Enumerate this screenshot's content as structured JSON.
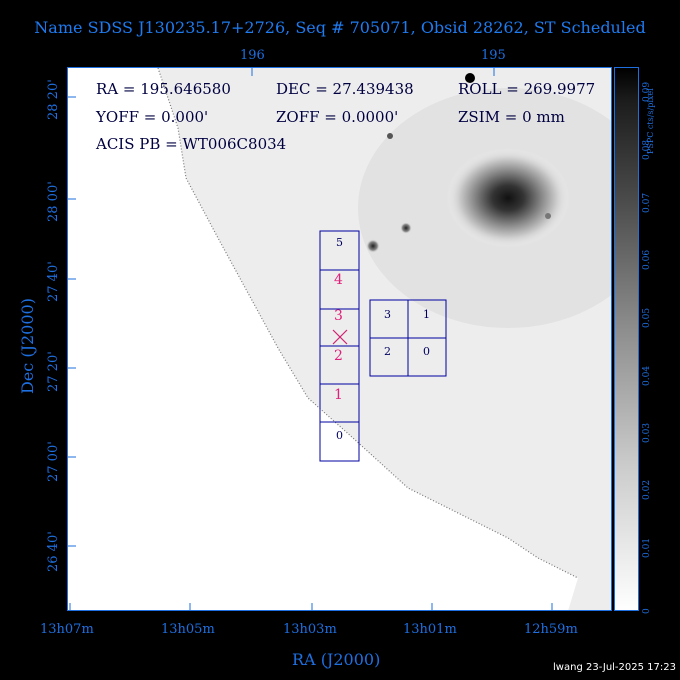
{
  "title": "Name SDSS J130235.17+2726, Seq # 705071, Obsid 28262, ST Scheduled",
  "info": {
    "ra": "RA = 195.646580",
    "dec": "DEC = 27.439438",
    "roll": "ROLL = 269.9977",
    "yoff": "YOFF =   0.000'",
    "zoff": "ZOFF =  0.0000'",
    "zsim": "ZSIM = 0 mm",
    "acis_pb": "ACIS PB = WT006C8034"
  },
  "top_axis_ticks": [
    "196",
    "195"
  ],
  "dec_ticks": [
    "28 20'",
    "28 00'",
    "27 40'",
    "27 20'",
    "27 00'",
    "26 40'"
  ],
  "ra_ticks": [
    "13h07m",
    "13h05m",
    "13h03m",
    "13h01m",
    "12h59m"
  ],
  "xlabel": "RA (J2000)",
  "ylabel": "Dec (J2000)",
  "colorbar": {
    "label": "PSPC cts/s/pixel",
    "ticks": [
      "0.09",
      "0.08",
      "0.07",
      "0.06",
      "0.05",
      "0.04",
      "0.03",
      "0.02",
      "0.01",
      "0"
    ]
  },
  "chips": {
    "s_column": [
      "5",
      "4",
      "3",
      "2",
      "1",
      "0"
    ],
    "i_array": [
      "3",
      "1",
      "2",
      "0"
    ]
  },
  "stamp": "lwang 23-Jul-2025 17:23"
}
